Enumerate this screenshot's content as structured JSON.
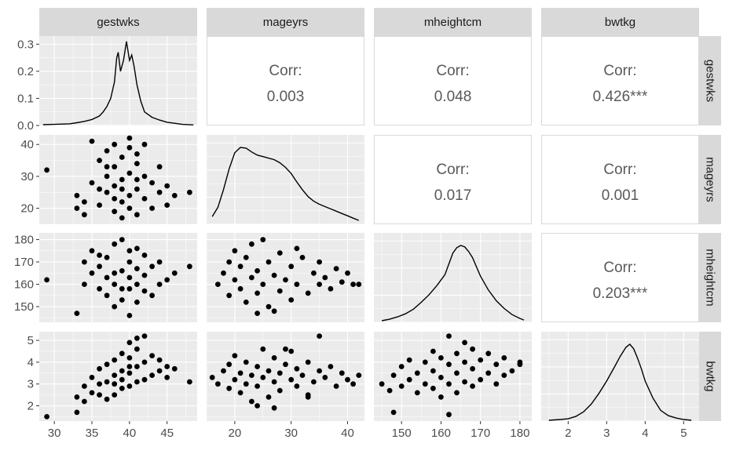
{
  "chart_data": {
    "type": "scatter",
    "title": "",
    "variables": [
      "gestwks",
      "mageyrs",
      "mheightcm",
      "bwtkg"
    ],
    "colors": {
      "panel": "#ebebeb",
      "strip": "#d9d9d9",
      "grid": "#ffffff",
      "points": "#000000",
      "corr_text": "#595959"
    },
    "grid": true,
    "ranges": {
      "gestwks": [
        28,
        49
      ],
      "mageyrs": [
        15,
        43
      ],
      "mheightcm": [
        143,
        183
      ],
      "bwtkg": [
        1.3,
        5.4
      ]
    },
    "ticks": {
      "gestwks": [
        30,
        35,
        40,
        45
      ],
      "mageyrs": [
        20,
        30,
        40
      ],
      "mheightcm": [
        150,
        160,
        170,
        180
      ],
      "bwtkg": [
        2,
        3,
        4,
        5
      ]
    },
    "density_ylim": [
      0,
      0.33
    ],
    "density_ticks": [
      "0.0",
      "0.1",
      "0.2",
      "0.3"
    ],
    "correlations": [
      {
        "row": "gestwks",
        "col": "mageyrs",
        "label": "Corr:",
        "value": "0.003"
      },
      {
        "row": "gestwks",
        "col": "mheightcm",
        "label": "Corr:",
        "value": "0.048"
      },
      {
        "row": "gestwks",
        "col": "bwtkg",
        "label": "Corr:",
        "value": "0.426***"
      },
      {
        "row": "mageyrs",
        "col": "mheightcm",
        "label": "Corr:",
        "value": "0.017"
      },
      {
        "row": "mageyrs",
        "col": "bwtkg",
        "label": "Corr:",
        "value": "0.001"
      },
      {
        "row": "mheightcm",
        "col": "bwtkg",
        "label": "Corr:",
        "value": "0.203***"
      }
    ],
    "densities": {
      "gestwks": [
        [
          28.5,
          0.003
        ],
        [
          30,
          0.004
        ],
        [
          32,
          0.006
        ],
        [
          33,
          0.01
        ],
        [
          34,
          0.015
        ],
        [
          35,
          0.022
        ],
        [
          36,
          0.035
        ],
        [
          36.5,
          0.05
        ],
        [
          37,
          0.07
        ],
        [
          37.5,
          0.1
        ],
        [
          38,
          0.16
        ],
        [
          38.3,
          0.25
        ],
        [
          38.5,
          0.27
        ],
        [
          38.8,
          0.2
        ],
        [
          39.2,
          0.24
        ],
        [
          39.6,
          0.31
        ],
        [
          40,
          0.24
        ],
        [
          40.3,
          0.26
        ],
        [
          40.6,
          0.22
        ],
        [
          41,
          0.15
        ],
        [
          41.5,
          0.09
        ],
        [
          42,
          0.05
        ],
        [
          43,
          0.03
        ],
        [
          44,
          0.02
        ],
        [
          45,
          0.012
        ],
        [
          46,
          0.008
        ],
        [
          47,
          0.004
        ],
        [
          48.5,
          0.002
        ]
      ],
      "mageyrs": [
        [
          16,
          0.1
        ],
        [
          17,
          0.22
        ],
        [
          18,
          0.45
        ],
        [
          19,
          0.72
        ],
        [
          20,
          0.93
        ],
        [
          21,
          1.0
        ],
        [
          22,
          0.99
        ],
        [
          23,
          0.94
        ],
        [
          24,
          0.9
        ],
        [
          25,
          0.88
        ],
        [
          26,
          0.86
        ],
        [
          27,
          0.84
        ],
        [
          28,
          0.8
        ],
        [
          29,
          0.74
        ],
        [
          30,
          0.66
        ],
        [
          31,
          0.55
        ],
        [
          32,
          0.45
        ],
        [
          33,
          0.36
        ],
        [
          34,
          0.3
        ],
        [
          35,
          0.26
        ],
        [
          36,
          0.23
        ],
        [
          37,
          0.2
        ],
        [
          38,
          0.17
        ],
        [
          39,
          0.14
        ],
        [
          40,
          0.11
        ],
        [
          41,
          0.08
        ],
        [
          42,
          0.05
        ]
      ],
      "mheightcm": [
        [
          145,
          0.02
        ],
        [
          147,
          0.04
        ],
        [
          149,
          0.07
        ],
        [
          151,
          0.11
        ],
        [
          153,
          0.17
        ],
        [
          155,
          0.26
        ],
        [
          157,
          0.36
        ],
        [
          159,
          0.48
        ],
        [
          161,
          0.62
        ],
        [
          162,
          0.76
        ],
        [
          163,
          0.9
        ],
        [
          164,
          0.97
        ],
        [
          165,
          1.0
        ],
        [
          166,
          0.98
        ],
        [
          167,
          0.92
        ],
        [
          168,
          0.84
        ],
        [
          169,
          0.72
        ],
        [
          170,
          0.6
        ],
        [
          172,
          0.42
        ],
        [
          174,
          0.28
        ],
        [
          176,
          0.18
        ],
        [
          178,
          0.1
        ],
        [
          180,
          0.05
        ],
        [
          181,
          0.03
        ]
      ],
      "bwtkg": [
        [
          1.5,
          0.01
        ],
        [
          1.8,
          0.02
        ],
        [
          2.0,
          0.03
        ],
        [
          2.2,
          0.06
        ],
        [
          2.4,
          0.12
        ],
        [
          2.6,
          0.22
        ],
        [
          2.8,
          0.36
        ],
        [
          3.0,
          0.52
        ],
        [
          3.2,
          0.7
        ],
        [
          3.35,
          0.84
        ],
        [
          3.5,
          0.96
        ],
        [
          3.6,
          1.0
        ],
        [
          3.7,
          0.94
        ],
        [
          3.8,
          0.82
        ],
        [
          3.9,
          0.68
        ],
        [
          4.0,
          0.52
        ],
        [
          4.2,
          0.3
        ],
        [
          4.4,
          0.14
        ],
        [
          4.6,
          0.07
        ],
        [
          4.8,
          0.04
        ],
        [
          5.0,
          0.02
        ],
        [
          5.2,
          0.01
        ]
      ]
    },
    "scatter": {
      "mageyrs_vs_gestwks": [
        [
          29,
          32
        ],
        [
          33,
          20
        ],
        [
          33,
          24
        ],
        [
          34,
          22
        ],
        [
          34,
          18
        ],
        [
          35,
          28
        ],
        [
          35,
          41
        ],
        [
          36,
          35
        ],
        [
          36,
          21
        ],
        [
          37,
          30
        ],
        [
          37,
          25
        ],
        [
          37,
          38
        ],
        [
          38,
          19
        ],
        [
          38,
          33
        ],
        [
          38,
          27
        ],
        [
          38,
          40
        ],
        [
          39,
          22
        ],
        [
          39,
          29
        ],
        [
          39,
          36
        ],
        [
          39,
          17
        ],
        [
          40,
          24
        ],
        [
          40,
          31
        ],
        [
          40,
          39
        ],
        [
          40,
          42
        ],
        [
          40,
          20
        ],
        [
          41,
          26
        ],
        [
          41,
          34
        ],
        [
          41,
          18
        ],
        [
          41,
          37
        ],
        [
          42,
          23
        ],
        [
          42,
          30
        ],
        [
          42,
          40
        ],
        [
          43,
          28
        ],
        [
          43,
          20
        ],
        [
          44,
          25
        ],
        [
          44,
          33
        ],
        [
          45,
          27
        ],
        [
          45,
          21
        ],
        [
          46,
          24
        ],
        [
          48,
          25
        ],
        [
          36,
          26
        ],
        [
          37,
          33
        ],
        [
          39,
          26
        ],
        [
          41,
          29
        ],
        [
          38,
          23
        ]
      ],
      "mheightcm_vs_gestwks": [
        [
          29,
          162
        ],
        [
          33,
          147
        ],
        [
          34,
          160
        ],
        [
          34,
          170
        ],
        [
          35,
          165
        ],
        [
          35,
          175
        ],
        [
          36,
          158
        ],
        [
          36,
          168
        ],
        [
          37,
          155
        ],
        [
          37,
          172
        ],
        [
          37,
          163
        ],
        [
          38,
          150
        ],
        [
          38,
          160
        ],
        [
          38,
          178
        ],
        [
          39,
          153
        ],
        [
          39,
          166
        ],
        [
          39,
          180
        ],
        [
          40,
          146
        ],
        [
          40,
          158
        ],
        [
          40,
          170
        ],
        [
          40,
          163
        ],
        [
          41,
          152
        ],
        [
          41,
          167
        ],
        [
          41,
          176
        ],
        [
          42,
          157
        ],
        [
          42,
          164
        ],
        [
          42,
          173
        ],
        [
          43,
          155
        ],
        [
          43,
          168
        ],
        [
          44,
          160
        ],
        [
          44,
          170
        ],
        [
          45,
          162
        ],
        [
          46,
          165
        ],
        [
          48,
          168
        ],
        [
          36,
          173
        ],
        [
          38,
          165
        ],
        [
          40,
          175
        ],
        [
          41,
          160
        ],
        [
          39,
          158
        ]
      ],
      "bwtkg_vs_gestwks": [
        [
          29,
          1.5
        ],
        [
          33,
          1.7
        ],
        [
          33,
          2.4
        ],
        [
          34,
          2.2
        ],
        [
          34,
          2.9
        ],
        [
          35,
          2.6
        ],
        [
          35,
          3.3
        ],
        [
          36,
          2.5
        ],
        [
          36,
          3.0
        ],
        [
          36,
          3.7
        ],
        [
          37,
          2.3
        ],
        [
          37,
          3.1
        ],
        [
          37,
          3.9
        ],
        [
          38,
          2.5
        ],
        [
          38,
          3.4
        ],
        [
          38,
          4.1
        ],
        [
          39,
          2.8
        ],
        [
          39,
          3.6
        ],
        [
          39,
          4.4
        ],
        [
          40,
          2.9
        ],
        [
          40,
          3.5
        ],
        [
          40,
          4.2
        ],
        [
          40,
          4.9
        ],
        [
          41,
          3.1
        ],
        [
          41,
          3.8
        ],
        [
          41,
          4.6
        ],
        [
          41,
          5.1
        ],
        [
          42,
          3.2
        ],
        [
          42,
          4.0
        ],
        [
          42,
          5.2
        ],
        [
          43,
          3.4
        ],
        [
          43,
          4.3
        ],
        [
          44,
          3.6
        ],
        [
          44,
          4.1
        ],
        [
          45,
          3.8
        ],
        [
          45,
          3.3
        ],
        [
          46,
          3.7
        ],
        [
          48,
          3.1
        ],
        [
          39,
          3.2
        ],
        [
          40,
          3.8
        ],
        [
          38,
          3.0
        ]
      ],
      "mheightcm_vs_mageyrs": [
        [
          17,
          160
        ],
        [
          18,
          165
        ],
        [
          19,
          155
        ],
        [
          19,
          170
        ],
        [
          20,
          162
        ],
        [
          20,
          175
        ],
        [
          21,
          158
        ],
        [
          21,
          168
        ],
        [
          22,
          152
        ],
        [
          22,
          172
        ],
        [
          23,
          163
        ],
        [
          23,
          178
        ],
        [
          24,
          156
        ],
        [
          24,
          166
        ],
        [
          25,
          160
        ],
        [
          25,
          180
        ],
        [
          26,
          150
        ],
        [
          26,
          170
        ],
        [
          27,
          164
        ],
        [
          28,
          157
        ],
        [
          28,
          174
        ],
        [
          29,
          162
        ],
        [
          30,
          168
        ],
        [
          30,
          153
        ],
        [
          31,
          160
        ],
        [
          32,
          172
        ],
        [
          33,
          156
        ],
        [
          34,
          165
        ],
        [
          35,
          160
        ],
        [
          35,
          170
        ],
        [
          36,
          163
        ],
        [
          37,
          158
        ],
        [
          38,
          167
        ],
        [
          39,
          161
        ],
        [
          40,
          165
        ],
        [
          41,
          160
        ],
        [
          42,
          160
        ],
        [
          24,
          147
        ],
        [
          27,
          148
        ],
        [
          31,
          176
        ]
      ],
      "bwtkg_vs_mageyrs": [
        [
          16,
          3.3
        ],
        [
          17,
          3.0
        ],
        [
          18,
          3.6
        ],
        [
          19,
          2.8
        ],
        [
          19,
          3.9
        ],
        [
          20,
          3.2
        ],
        [
          20,
          4.3
        ],
        [
          21,
          2.6
        ],
        [
          21,
          3.5
        ],
        [
          22,
          3.0
        ],
        [
          22,
          4.0
        ],
        [
          23,
          2.2
        ],
        [
          23,
          3.4
        ],
        [
          24,
          3.8
        ],
        [
          24,
          2.9
        ],
        [
          25,
          3.3
        ],
        [
          25,
          4.6
        ],
        [
          26,
          2.4
        ],
        [
          26,
          3.6
        ],
        [
          27,
          3.1
        ],
        [
          27,
          4.2
        ],
        [
          28,
          3.5
        ],
        [
          28,
          2.7
        ],
        [
          29,
          3.9
        ],
        [
          30,
          3.2
        ],
        [
          30,
          4.5
        ],
        [
          31,
          2.9
        ],
        [
          31,
          3.7
        ],
        [
          32,
          3.4
        ],
        [
          33,
          4.0
        ],
        [
          33,
          2.5
        ],
        [
          34,
          3.1
        ],
        [
          35,
          3.6
        ],
        [
          35,
          5.2
        ],
        [
          36,
          3.3
        ],
        [
          37,
          3.8
        ],
        [
          38,
          2.9
        ],
        [
          39,
          3.5
        ],
        [
          40,
          3.2
        ],
        [
          41,
          3.0
        ],
        [
          42,
          3.4
        ],
        [
          24,
          2.0
        ],
        [
          27,
          1.9
        ],
        [
          33,
          2.4
        ],
        [
          29,
          4.6
        ]
      ],
      "bwtkg_vs_mheightcm": [
        [
          145,
          3.0
        ],
        [
          147,
          2.7
        ],
        [
          148,
          1.7
        ],
        [
          148,
          3.4
        ],
        [
          150,
          2.9
        ],
        [
          150,
          3.8
        ],
        [
          152,
          3.2
        ],
        [
          152,
          4.1
        ],
        [
          154,
          2.6
        ],
        [
          154,
          3.5
        ],
        [
          156,
          3.0
        ],
        [
          156,
          4.0
        ],
        [
          158,
          2.8
        ],
        [
          158,
          3.6
        ],
        [
          158,
          4.5
        ],
        [
          160,
          2.4
        ],
        [
          160,
          3.3
        ],
        [
          160,
          4.2
        ],
        [
          162,
          3.0
        ],
        [
          162,
          3.9
        ],
        [
          162,
          5.2
        ],
        [
          164,
          2.6
        ],
        [
          164,
          3.5
        ],
        [
          164,
          4.4
        ],
        [
          166,
          3.1
        ],
        [
          166,
          4.0
        ],
        [
          166,
          4.9
        ],
        [
          168,
          2.9
        ],
        [
          168,
          3.7
        ],
        [
          168,
          4.6
        ],
        [
          170,
          3.2
        ],
        [
          170,
          4.1
        ],
        [
          172,
          3.5
        ],
        [
          172,
          4.4
        ],
        [
          174,
          3.0
        ],
        [
          174,
          3.9
        ],
        [
          176,
          3.4
        ],
        [
          176,
          4.2
        ],
        [
          178,
          3.6
        ],
        [
          180,
          3.9
        ],
        [
          180,
          4.0
        ],
        [
          162,
          1.6
        ]
      ]
    }
  }
}
